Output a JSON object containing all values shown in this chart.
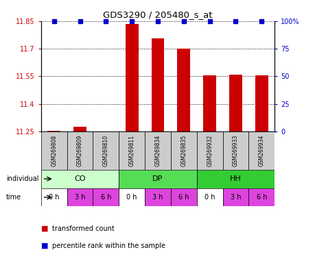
{
  "title": "GDS3290 / 205480_s_at",
  "samples": [
    "GSM269808",
    "GSM269809",
    "GSM269810",
    "GSM269811",
    "GSM269834",
    "GSM269835",
    "GSM269932",
    "GSM269933",
    "GSM269934"
  ],
  "bar_values": [
    11.252,
    11.275,
    11.251,
    11.835,
    11.755,
    11.7,
    11.555,
    11.557,
    11.555
  ],
  "ylim_min": 11.25,
  "ylim_max": 11.85,
  "yticks": [
    11.25,
    11.4,
    11.55,
    11.7,
    11.85
  ],
  "ytick_labels": [
    "11.25",
    "11.4",
    "11.55",
    "11.7",
    "11.85"
  ],
  "right_yticks": [
    0,
    25,
    50,
    75,
    100
  ],
  "right_ytick_labels": [
    "0",
    "25",
    "50",
    "75",
    "100%"
  ],
  "bar_color": "#cc0000",
  "percentile_color": "#0000cc",
  "individual_groups": [
    {
      "label": "CO",
      "start": 0,
      "end": 3,
      "color": "#ccffcc"
    },
    {
      "label": "DP",
      "start": 3,
      "end": 6,
      "color": "#55dd55"
    },
    {
      "label": "HH",
      "start": 6,
      "end": 9,
      "color": "#33cc33"
    }
  ],
  "time_labels": [
    "0 h",
    "3 h",
    "6 h",
    "0 h",
    "3 h",
    "6 h",
    "0 h",
    "3 h",
    "6 h"
  ],
  "time_colors_bg": [
    "#ffffff",
    "#dd44dd",
    "#dd44dd",
    "#ffffff",
    "#dd44dd",
    "#dd44dd",
    "#ffffff",
    "#dd44dd",
    "#dd44dd"
  ],
  "sample_area_color": "#cccccc",
  "legend_items": [
    {
      "color": "#cc0000",
      "label": "transformed count"
    },
    {
      "color": "#0000cc",
      "label": "percentile rank within the sample"
    }
  ]
}
